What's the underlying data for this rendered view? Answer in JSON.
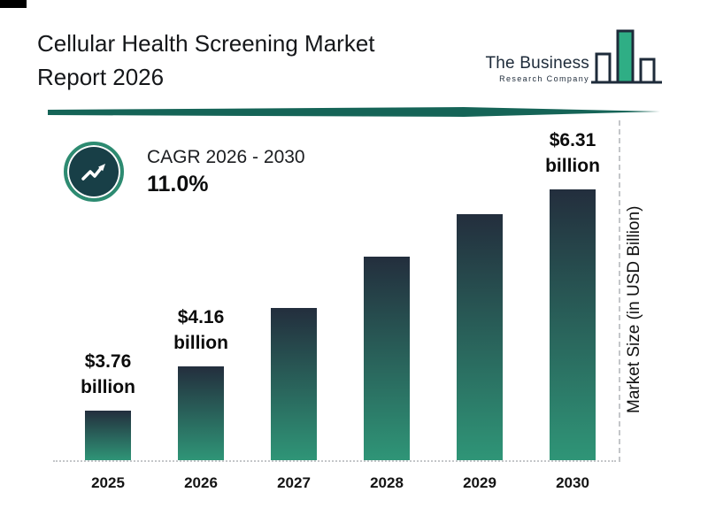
{
  "header": {
    "title_line1": "Cellular Health Screening Market",
    "title_line2": "Report 2026"
  },
  "logo": {
    "name": "The Business",
    "subtitle": "Research Company"
  },
  "cagr": {
    "label": "CAGR 2026 - 2030",
    "value": "11.0%"
  },
  "chart_data": {
    "type": "bar",
    "title": "Cellular Health Screening Market Report 2026",
    "categories": [
      "2025",
      "2026",
      "2027",
      "2028",
      "2029",
      "2030"
    ],
    "values": [
      3.76,
      4.16,
      4.62,
      5.12,
      5.68,
      6.31
    ],
    "data_labels": [
      {
        "amount": "$3.76",
        "unit": "billion"
      },
      {
        "amount": "$4.16",
        "unit": "billion"
      },
      null,
      null,
      null,
      {
        "amount": "$6.31",
        "unit": "billion"
      }
    ],
    "xlabel": "",
    "ylabel": "Market Size (in USD Billion)",
    "legend": false,
    "grid": false,
    "bar_gradient_top": "#232e3d",
    "bar_gradient_bottom": "#2f9577"
  },
  "colors": {
    "accent_teal": "#156457",
    "dark_navy": "#1e2b3a",
    "logo_green": "#2fae85"
  }
}
